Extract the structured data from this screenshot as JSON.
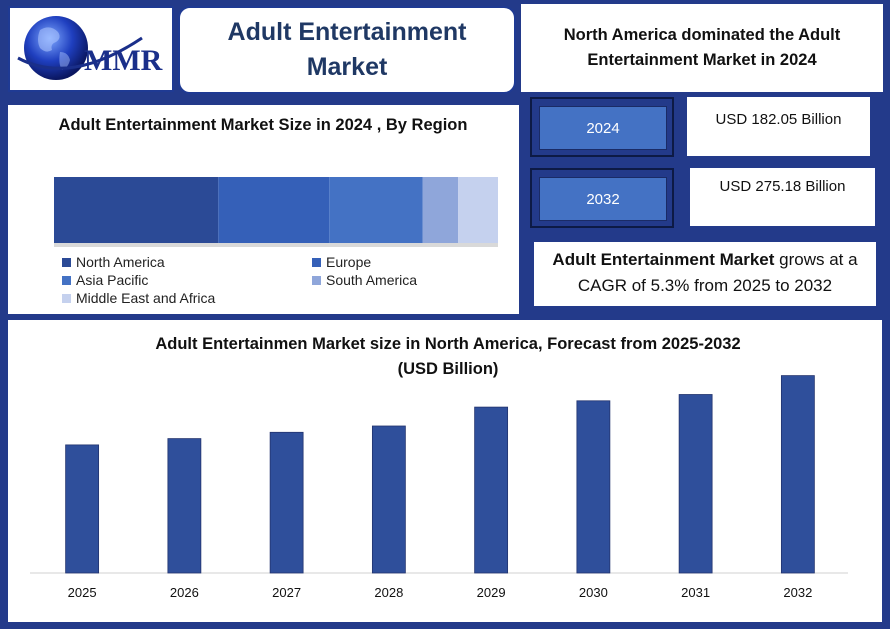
{
  "header": {
    "logo_text": "MMR",
    "title": "Adult Entertainment Market",
    "dominance_note": "North America dominated the Adult Entertainment Market in 2024"
  },
  "stats": {
    "rows": [
      {
        "year": "2024",
        "value": "USD 182.05 Billion"
      },
      {
        "year": "2032",
        "value": "USD 275.18 Billion"
      }
    ],
    "cagr_bold": "Adult Entertainment Market",
    "cagr_rest": " grows at a CAGR of 5.3% from 2025 to 2032"
  },
  "colors": {
    "frame": "#233a8a",
    "bar": "#2f4f9b",
    "year_box": "#4472c4"
  },
  "chart_data": [
    {
      "type": "bar",
      "stacked": true,
      "orientation": "horizontal",
      "title": "Adult Entertainment Market Size in 2024 , By Region",
      "series": [
        {
          "name": "North America",
          "value": 37,
          "color": "#2b4a96"
        },
        {
          "name": "Europe",
          "value": 25,
          "color": "#3560b8"
        },
        {
          "name": "Asia Pacific",
          "value": 21,
          "color": "#4472c4"
        },
        {
          "name": "South America",
          "value": 8,
          "color": "#8fa6da"
        },
        {
          "name": "Middle East and Africa",
          "value": 9,
          "color": "#c5d1ee"
        }
      ],
      "legend_columns": [
        [
          "North America",
          "Asia Pacific",
          "Middle East and Africa"
        ],
        [
          "Europe",
          "South America"
        ]
      ]
    },
    {
      "type": "bar",
      "title": "Adult Entertainmen Market size in North America, Forecast from 2025-2032",
      "subtitle": "(USD Billion)",
      "categories": [
        "2025",
        "2026",
        "2027",
        "2028",
        "2029",
        "2030",
        "2031",
        "2032"
      ],
      "values": [
        61,
        64,
        67,
        70,
        79,
        82,
        85,
        94
      ],
      "ylim": [
        0,
        100
      ],
      "grid": false
    }
  ]
}
